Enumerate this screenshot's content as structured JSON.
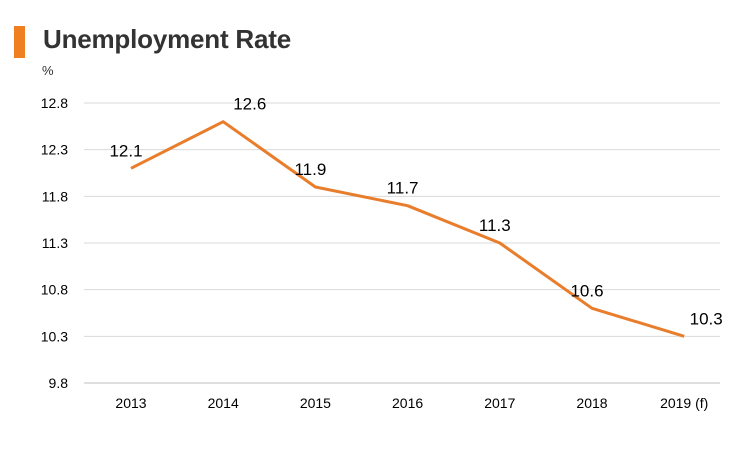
{
  "header": {
    "title": "Unemployment Rate",
    "accent_color": "#F07F22"
  },
  "chart_data": {
    "type": "line",
    "title": "Unemployment Rate",
    "ylabel": "%",
    "xlabel": "",
    "categories": [
      "2013",
      "2014",
      "2015",
      "2016",
      "2017",
      "2018",
      "2019 (f)"
    ],
    "series": [
      {
        "values": [
          12.1,
          12.6,
          11.9,
          11.7,
          11.3,
          10.6,
          10.3
        ],
        "color": "#E87D2C"
      }
    ],
    "data_labels": [
      "12.1",
      "12.6",
      "11.9",
      "11.7",
      "11.3",
      "10.6",
      "10.3"
    ],
    "y_ticks": [
      "9.8",
      "10.3",
      "10.8",
      "11.3",
      "11.8",
      "12.3",
      "12.8"
    ],
    "ylim": [
      9.8,
      12.8
    ],
    "grid": true,
    "legend": "none"
  }
}
